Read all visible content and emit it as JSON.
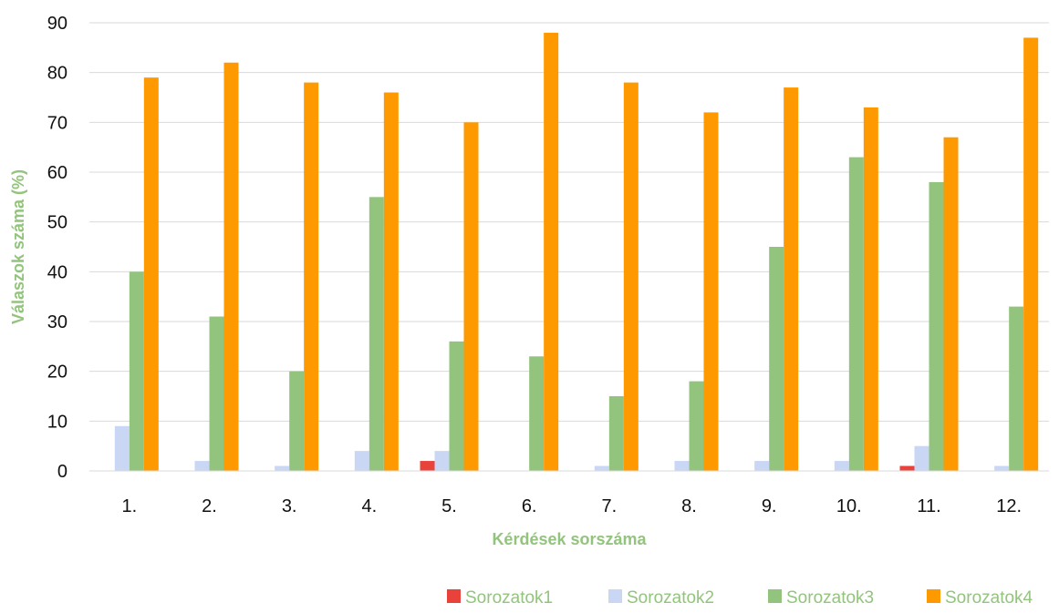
{
  "chart_data": {
    "type": "bar",
    "xlabel": "Kérdések sorszáma",
    "ylabel": "Válaszok száma (%)",
    "ylim": [
      0,
      90
    ],
    "yticks": [
      0,
      10,
      20,
      30,
      40,
      50,
      60,
      70,
      80,
      90
    ],
    "grid": "horizontal",
    "legend_position": "bottom-right",
    "categories": [
      "1.",
      "2.",
      "3.",
      "4.",
      "5.",
      "6.",
      "7.",
      "8.",
      "9.",
      "10.",
      "11.",
      "12."
    ],
    "series": [
      {
        "name": "Sorozatok1",
        "color": "#e8423a",
        "values": [
          0,
          0,
          0,
          0,
          2,
          0,
          0,
          0,
          0,
          0,
          1,
          0
        ]
      },
      {
        "name": "Sorozatok2",
        "color": "#c9d7f5",
        "values": [
          9,
          2,
          1,
          4,
          4,
          0,
          1,
          2,
          2,
          2,
          5,
          1
        ]
      },
      {
        "name": "Sorozatok3",
        "color": "#93c47d",
        "values": [
          40,
          31,
          20,
          55,
          26,
          23,
          15,
          18,
          45,
          63,
          58,
          33
        ]
      },
      {
        "name": "Sorozatok4",
        "color": "#ff9900",
        "values": [
          79,
          82,
          78,
          76,
          70,
          88,
          78,
          72,
          77,
          73,
          67,
          87
        ]
      }
    ],
    "axis_title_color": "#93c47d",
    "legend_text_color": "#93c47d"
  }
}
